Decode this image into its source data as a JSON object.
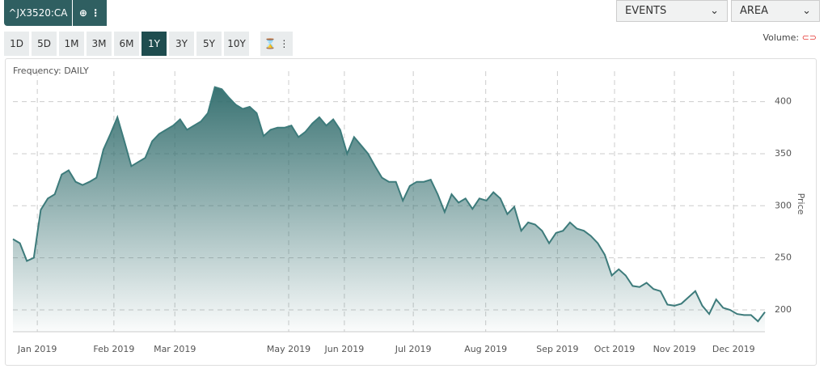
{
  "ui": {
    "symbol": "^JX3520:CA",
    "periods": [
      "1D",
      "5D",
      "1M",
      "3M",
      "6M",
      "1Y",
      "3Y",
      "5Y",
      "10Y"
    ],
    "active_period": "1Y",
    "events": "EVENTS",
    "chart_style": "AREA",
    "volume": "Volume:"
  },
  "chart_data": {
    "type": "area",
    "annotation": "Frequency: DAILY",
    "y_label": "Price",
    "color": "#3d7b7b",
    "values": [
      268,
      264,
      247,
      250,
      296,
      307,
      311,
      330,
      334,
      323,
      320,
      323,
      327,
      354,
      369,
      385,
      362,
      338,
      342,
      346,
      362,
      369,
      373,
      377,
      383,
      373,
      377,
      381,
      389,
      414,
      412,
      404,
      397,
      393,
      395,
      389,
      367,
      373,
      375,
      375,
      377,
      366,
      371,
      379,
      385,
      377,
      383,
      373,
      350,
      366,
      358,
      350,
      338,
      327,
      323,
      323,
      305,
      319,
      323,
      323,
      325,
      311,
      294,
      311,
      303,
      307,
      297,
      307,
      305,
      313,
      307,
      292,
      299,
      276,
      284,
      282,
      276,
      264,
      274,
      276,
      284,
      278,
      276,
      271,
      264,
      253,
      233,
      239,
      233,
      223,
      222,
      226,
      220,
      218,
      205,
      204,
      206,
      212,
      218,
      204,
      196,
      210,
      202,
      200,
      196,
      195,
      195,
      189,
      198
    ],
    "xticks": [
      {
        "value": 3.5,
        "label": "Jan 2019"
      },
      {
        "value": 14.5,
        "label": "Feb 2019"
      },
      {
        "value": 23.25,
        "label": "Mar 2019"
      },
      {
        "value": 39.6,
        "label": "May 2019"
      },
      {
        "value": 47.6,
        "label": "Jun 2019"
      },
      {
        "value": 57.5,
        "label": "Jul 2019"
      },
      {
        "value": 67.9,
        "label": "Aug 2019"
      },
      {
        "value": 78.2,
        "label": "Sep 2019"
      },
      {
        "value": 86.4,
        "label": "Oct 2019"
      },
      {
        "value": 95,
        "label": "Nov 2019"
      },
      {
        "value": 103.5,
        "label": "Dec 2019"
      }
    ],
    "ylim": [
      179,
      437
    ],
    "yticks": [
      200,
      250,
      300,
      350,
      400
    ],
    "grid": true
  }
}
